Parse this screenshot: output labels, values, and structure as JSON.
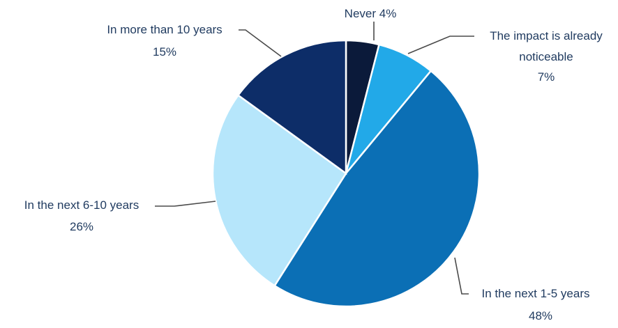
{
  "chart_data": {
    "type": "pie",
    "title": "",
    "start_angle_deg": 0,
    "direction": "clockwise",
    "legend": "none",
    "slices": [
      {
        "label": "Never",
        "value": 4,
        "value_label": "4%",
        "color": "#0b1a3a"
      },
      {
        "label": "The impact is already noticeable",
        "value": 7,
        "value_label": "7%",
        "color": "#22a9e8"
      },
      {
        "label": "In the next 1-5 years",
        "value": 48,
        "value_label": "48%",
        "color": "#0b6fb5"
      },
      {
        "label": "In the next 6-10 years",
        "value": 26,
        "value_label": "26%",
        "color": "#b6e6fb"
      },
      {
        "label": "In more than 10 years",
        "value": 15,
        "value_label": "15%",
        "color": "#0d2d68"
      }
    ]
  }
}
